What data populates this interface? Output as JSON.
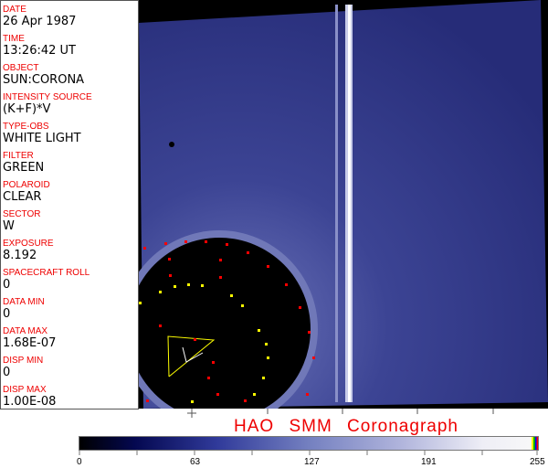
{
  "fields": [
    {
      "label": "DATE",
      "value": "26 Apr 1987"
    },
    {
      "label": "TIME",
      "value": "13:26:42 UT"
    },
    {
      "label": "OBJECT",
      "value": "SUN:CORONA"
    },
    {
      "label": "INTENSITY SOURCE",
      "value": "(K+F)*V"
    },
    {
      "label": "TYPE-OBS",
      "value": "WHITE LIGHT"
    },
    {
      "label": "FILTER",
      "value": "GREEN"
    },
    {
      "label": "POLAROID",
      "value": "CLEAR"
    },
    {
      "label": "SECTOR",
      "value": "W"
    },
    {
      "label": "EXPOSURE",
      "value": "8.192"
    },
    {
      "label": "SPACECRAFT ROLL",
      "value": "0"
    },
    {
      "label": "DATA MIN",
      "value": "0"
    },
    {
      "label": "DATA MAX",
      "value": "1.68E-07"
    },
    {
      "label": "DISP MIN",
      "value": "0"
    },
    {
      "label": "DISP MAX",
      "value": "1.00E-08"
    }
  ],
  "title": "HAO  SMM Coronagraph",
  "colorbar": {
    "ticks": [
      "0",
      "63",
      "127",
      "191",
      "255"
    ],
    "colors": [
      "#000000",
      "#040850",
      "#303a9a",
      "#7480c0",
      "#b0b4dc",
      "#f8f8f8"
    ]
  }
}
